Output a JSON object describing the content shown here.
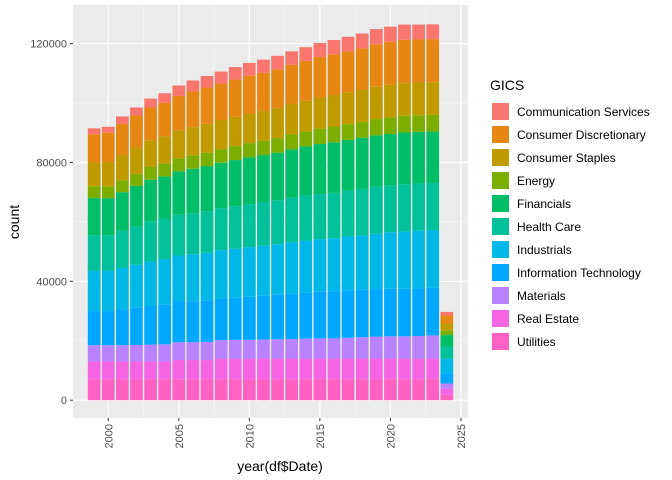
{
  "chart_data": {
    "type": "bar",
    "stacked": true,
    "xlabel": "year(df$Date)",
    "ylabel": "count",
    "xlim": [
      1997.5,
      2025.5
    ],
    "ylim": [
      -6000,
      133000
    ],
    "x_ticks": [
      2000,
      2005,
      2010,
      2015,
      2020,
      2025
    ],
    "y_ticks": [
      0,
      40000,
      80000,
      120000
    ],
    "y_tick_labels": [
      "0",
      "40000",
      "80000",
      "120000"
    ],
    "grid": true,
    "legend_position": "right",
    "legend_title": "GICS",
    "x": [
      1999,
      2000,
      2001,
      2002,
      2003,
      2004,
      2005,
      2006,
      2007,
      2008,
      2009,
      2010,
      2011,
      2012,
      2013,
      2014,
      2015,
      2016,
      2017,
      2018,
      2019,
      2020,
      2021,
      2022,
      2023,
      2024
    ],
    "series": [
      {
        "name": "Utilities",
        "color": "#FF61C3",
        "values": [
          7000,
          7000,
          7000,
          7000,
          7000,
          7000,
          7000,
          7000,
          7000,
          7000,
          7000,
          7000,
          7000,
          7000,
          7000,
          7000,
          7000,
          7000,
          7000,
          7000,
          7000,
          7000,
          7000,
          7000,
          7000,
          1800
        ]
      },
      {
        "name": "Real Estate",
        "color": "#F564E3",
        "values": [
          6000,
          6000,
          6000,
          6000,
          6000,
          6000,
          6500,
          6500,
          6500,
          7000,
          7000,
          7000,
          7000,
          7000,
          7000,
          7000,
          7000,
          7000,
          7000,
          7000,
          7000,
          7000,
          7000,
          7000,
          7000,
          2000
        ]
      },
      {
        "name": "Materials",
        "color": "#B983FF",
        "values": [
          5500,
          5500,
          5500,
          5600,
          5700,
          5800,
          6000,
          6000,
          6100,
          6200,
          6300,
          6300,
          6400,
          6500,
          6600,
          6700,
          6800,
          6800,
          7000,
          7200,
          7400,
          7500,
          7500,
          7600,
          7800,
          1800
        ]
      },
      {
        "name": "Information Technology",
        "color": "#00A9FF",
        "values": [
          11500,
          11500,
          12000,
          12500,
          13000,
          13500,
          13700,
          13800,
          14000,
          14000,
          14200,
          14500,
          14700,
          15000,
          15200,
          15500,
          15700,
          15800,
          16000,
          16000,
          16000,
          16000,
          16000,
          16000,
          16000,
          3500
        ]
      },
      {
        "name": "Industrials",
        "color": "#00B8E7",
        "values": [
          13500,
          13500,
          14000,
          14500,
          15000,
          15200,
          15500,
          15800,
          16000,
          16300,
          16500,
          16700,
          16900,
          17000,
          17300,
          17500,
          17700,
          17900,
          18100,
          18300,
          18600,
          19000,
          19300,
          19400,
          19500,
          4800
        ]
      },
      {
        "name": "Health Care",
        "color": "#00C19A",
        "values": [
          12000,
          12000,
          12500,
          13000,
          13500,
          13500,
          13700,
          13800,
          14000,
          14100,
          14300,
          14500,
          14700,
          14800,
          15000,
          15200,
          15200,
          15300,
          15400,
          15600,
          15800,
          15800,
          15900,
          15900,
          15800,
          4000
        ]
      },
      {
        "name": "Financials",
        "color": "#00BE67",
        "values": [
          12500,
          12500,
          13000,
          13500,
          14000,
          14300,
          14600,
          15000,
          15200,
          15300,
          15500,
          15700,
          15800,
          16000,
          16300,
          16500,
          16800,
          17000,
          17100,
          17200,
          17300,
          17300,
          17400,
          17400,
          17300,
          4000
        ]
      },
      {
        "name": "Energy",
        "color": "#7CAE00",
        "values": [
          4000,
          4000,
          4000,
          4100,
          4300,
          4300,
          4400,
          4500,
          4500,
          4600,
          4700,
          4800,
          4800,
          4900,
          5000,
          5000,
          5200,
          5300,
          5300,
          5300,
          5500,
          5600,
          5600,
          5600,
          5600,
          1500
        ]
      },
      {
        "name": "Consumer Staples",
        "color": "#C09B00",
        "values": [
          8000,
          8000,
          8500,
          8800,
          9000,
          9200,
          9400,
          9500,
          9700,
          9800,
          9900,
          10000,
          10000,
          10200,
          10300,
          10400,
          10500,
          10600,
          10700,
          10800,
          10900,
          11000,
          11000,
          11000,
          11000,
          2400
        ]
      },
      {
        "name": "Consumer Discretionary",
        "color": "#E68613",
        "values": [
          9500,
          10000,
          10500,
          10800,
          11000,
          11300,
          11600,
          12000,
          12200,
          12300,
          12500,
          12700,
          12900,
          13000,
          13200,
          13400,
          13600,
          13700,
          13800,
          14000,
          14300,
          14400,
          14600,
          14500,
          14500,
          2700
        ]
      },
      {
        "name": "Communication Services",
        "color": "#F8766D",
        "values": [
          2000,
          2000,
          2500,
          2700,
          3000,
          3200,
          3500,
          3700,
          3900,
          4000,
          4200,
          4300,
          4400,
          4500,
          4500,
          4600,
          4700,
          4800,
          4900,
          5000,
          5100,
          5100,
          5100,
          5000,
          5000,
          1200
        ]
      }
    ]
  }
}
